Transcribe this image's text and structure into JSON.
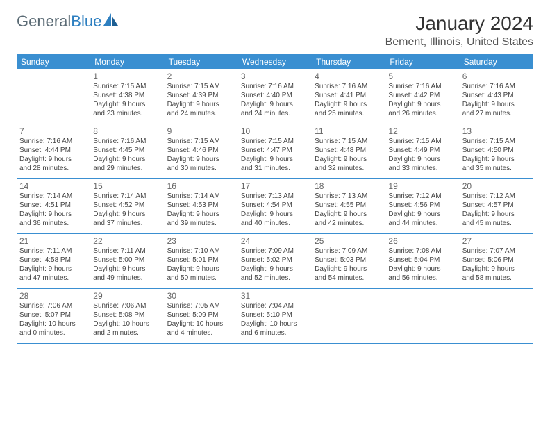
{
  "logo": {
    "gray": "General",
    "blue": "Blue"
  },
  "header": {
    "title": "January 2024",
    "location": "Bement, Illinois, United States"
  },
  "dow": [
    "Sunday",
    "Monday",
    "Tuesday",
    "Wednesday",
    "Thursday",
    "Friday",
    "Saturday"
  ],
  "colors": {
    "header_bg": "#3a8fd1",
    "header_text": "#ffffff",
    "rule": "#3a8fd1",
    "daynum": "#666666",
    "body_text": "#444444",
    "logo_gray": "#5b6b75",
    "logo_blue": "#2d7fc0"
  },
  "weeks": [
    [
      null,
      {
        "n": "1",
        "r": "Sunrise: 7:15 AM",
        "s": "Sunset: 4:38 PM",
        "d1": "Daylight: 9 hours",
        "d2": "and 23 minutes."
      },
      {
        "n": "2",
        "r": "Sunrise: 7:15 AM",
        "s": "Sunset: 4:39 PM",
        "d1": "Daylight: 9 hours",
        "d2": "and 24 minutes."
      },
      {
        "n": "3",
        "r": "Sunrise: 7:16 AM",
        "s": "Sunset: 4:40 PM",
        "d1": "Daylight: 9 hours",
        "d2": "and 24 minutes."
      },
      {
        "n": "4",
        "r": "Sunrise: 7:16 AM",
        "s": "Sunset: 4:41 PM",
        "d1": "Daylight: 9 hours",
        "d2": "and 25 minutes."
      },
      {
        "n": "5",
        "r": "Sunrise: 7:16 AM",
        "s": "Sunset: 4:42 PM",
        "d1": "Daylight: 9 hours",
        "d2": "and 26 minutes."
      },
      {
        "n": "6",
        "r": "Sunrise: 7:16 AM",
        "s": "Sunset: 4:43 PM",
        "d1": "Daylight: 9 hours",
        "d2": "and 27 minutes."
      }
    ],
    [
      {
        "n": "7",
        "r": "Sunrise: 7:16 AM",
        "s": "Sunset: 4:44 PM",
        "d1": "Daylight: 9 hours",
        "d2": "and 28 minutes."
      },
      {
        "n": "8",
        "r": "Sunrise: 7:16 AM",
        "s": "Sunset: 4:45 PM",
        "d1": "Daylight: 9 hours",
        "d2": "and 29 minutes."
      },
      {
        "n": "9",
        "r": "Sunrise: 7:15 AM",
        "s": "Sunset: 4:46 PM",
        "d1": "Daylight: 9 hours",
        "d2": "and 30 minutes."
      },
      {
        "n": "10",
        "r": "Sunrise: 7:15 AM",
        "s": "Sunset: 4:47 PM",
        "d1": "Daylight: 9 hours",
        "d2": "and 31 minutes."
      },
      {
        "n": "11",
        "r": "Sunrise: 7:15 AM",
        "s": "Sunset: 4:48 PM",
        "d1": "Daylight: 9 hours",
        "d2": "and 32 minutes."
      },
      {
        "n": "12",
        "r": "Sunrise: 7:15 AM",
        "s": "Sunset: 4:49 PM",
        "d1": "Daylight: 9 hours",
        "d2": "and 33 minutes."
      },
      {
        "n": "13",
        "r": "Sunrise: 7:15 AM",
        "s": "Sunset: 4:50 PM",
        "d1": "Daylight: 9 hours",
        "d2": "and 35 minutes."
      }
    ],
    [
      {
        "n": "14",
        "r": "Sunrise: 7:14 AM",
        "s": "Sunset: 4:51 PM",
        "d1": "Daylight: 9 hours",
        "d2": "and 36 minutes."
      },
      {
        "n": "15",
        "r": "Sunrise: 7:14 AM",
        "s": "Sunset: 4:52 PM",
        "d1": "Daylight: 9 hours",
        "d2": "and 37 minutes."
      },
      {
        "n": "16",
        "r": "Sunrise: 7:14 AM",
        "s": "Sunset: 4:53 PM",
        "d1": "Daylight: 9 hours",
        "d2": "and 39 minutes."
      },
      {
        "n": "17",
        "r": "Sunrise: 7:13 AM",
        "s": "Sunset: 4:54 PM",
        "d1": "Daylight: 9 hours",
        "d2": "and 40 minutes."
      },
      {
        "n": "18",
        "r": "Sunrise: 7:13 AM",
        "s": "Sunset: 4:55 PM",
        "d1": "Daylight: 9 hours",
        "d2": "and 42 minutes."
      },
      {
        "n": "19",
        "r": "Sunrise: 7:12 AM",
        "s": "Sunset: 4:56 PM",
        "d1": "Daylight: 9 hours",
        "d2": "and 44 minutes."
      },
      {
        "n": "20",
        "r": "Sunrise: 7:12 AM",
        "s": "Sunset: 4:57 PM",
        "d1": "Daylight: 9 hours",
        "d2": "and 45 minutes."
      }
    ],
    [
      {
        "n": "21",
        "r": "Sunrise: 7:11 AM",
        "s": "Sunset: 4:58 PM",
        "d1": "Daylight: 9 hours",
        "d2": "and 47 minutes."
      },
      {
        "n": "22",
        "r": "Sunrise: 7:11 AM",
        "s": "Sunset: 5:00 PM",
        "d1": "Daylight: 9 hours",
        "d2": "and 49 minutes."
      },
      {
        "n": "23",
        "r": "Sunrise: 7:10 AM",
        "s": "Sunset: 5:01 PM",
        "d1": "Daylight: 9 hours",
        "d2": "and 50 minutes."
      },
      {
        "n": "24",
        "r": "Sunrise: 7:09 AM",
        "s": "Sunset: 5:02 PM",
        "d1": "Daylight: 9 hours",
        "d2": "and 52 minutes."
      },
      {
        "n": "25",
        "r": "Sunrise: 7:09 AM",
        "s": "Sunset: 5:03 PM",
        "d1": "Daylight: 9 hours",
        "d2": "and 54 minutes."
      },
      {
        "n": "26",
        "r": "Sunrise: 7:08 AM",
        "s": "Sunset: 5:04 PM",
        "d1": "Daylight: 9 hours",
        "d2": "and 56 minutes."
      },
      {
        "n": "27",
        "r": "Sunrise: 7:07 AM",
        "s": "Sunset: 5:06 PM",
        "d1": "Daylight: 9 hours",
        "d2": "and 58 minutes."
      }
    ],
    [
      {
        "n": "28",
        "r": "Sunrise: 7:06 AM",
        "s": "Sunset: 5:07 PM",
        "d1": "Daylight: 10 hours",
        "d2": "and 0 minutes."
      },
      {
        "n": "29",
        "r": "Sunrise: 7:06 AM",
        "s": "Sunset: 5:08 PM",
        "d1": "Daylight: 10 hours",
        "d2": "and 2 minutes."
      },
      {
        "n": "30",
        "r": "Sunrise: 7:05 AM",
        "s": "Sunset: 5:09 PM",
        "d1": "Daylight: 10 hours",
        "d2": "and 4 minutes."
      },
      {
        "n": "31",
        "r": "Sunrise: 7:04 AM",
        "s": "Sunset: 5:10 PM",
        "d1": "Daylight: 10 hours",
        "d2": "and 6 minutes."
      },
      null,
      null,
      null
    ]
  ]
}
